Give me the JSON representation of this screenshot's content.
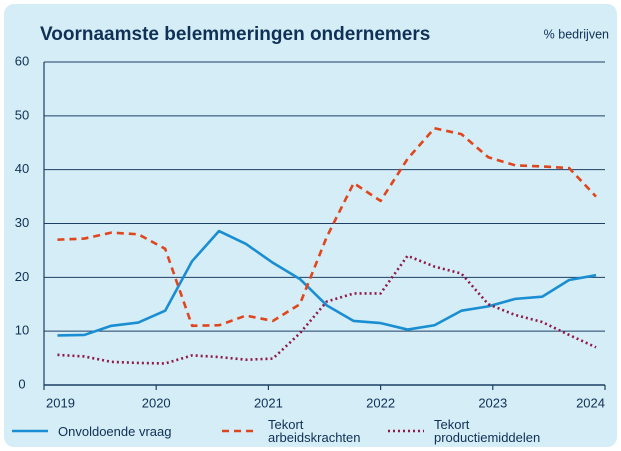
{
  "chart_data": {
    "type": "line",
    "title": "Voornaamste belemmeringen ondernemers",
    "y_label": "% bedrijven",
    "x": [
      2019.12,
      2019.36,
      2019.6,
      2019.84,
      2020.08,
      2020.32,
      2020.56,
      2020.8,
      2021.04,
      2021.28,
      2021.52,
      2021.76,
      2022.0,
      2022.24,
      2022.48,
      2022.72,
      2022.96,
      2023.2,
      2023.44,
      2023.68,
      2023.92
    ],
    "xlim": [
      2019,
      2024
    ],
    "xticks": [
      2019,
      2020,
      2021,
      2022,
      2023,
      2024
    ],
    "ylim": [
      0,
      60
    ],
    "yticks": [
      0,
      10,
      20,
      30,
      40,
      50,
      60
    ],
    "grid": true,
    "series": [
      {
        "name": "Onvoldoende vraag",
        "color": "#1a8ed2",
        "style": "solid",
        "values": [
          9.2,
          9.3,
          11,
          11.6,
          13.8,
          23,
          28.6,
          26.2,
          22.7,
          19.7,
          14.8,
          11.9,
          11.5,
          10.3,
          11.1,
          13.8,
          14.6,
          16,
          16.4,
          19.5,
          20.4
        ]
      },
      {
        "name": "Tekort arbeidskrachten",
        "color": "#e0461e",
        "style": "dashed",
        "values": [
          27,
          27.2,
          28.3,
          28,
          25.3,
          11,
          11.1,
          12.9,
          11.9,
          15,
          27.5,
          37.5,
          34.2,
          42,
          47.7,
          46.6,
          42.3,
          40.8,
          40.6,
          40.3,
          35
        ]
      },
      {
        "name": "Tekort productiemiddelen",
        "color": "#8e1a4a",
        "style": "dotted",
        "values": [
          5.6,
          5.3,
          4.3,
          4.1,
          4.0,
          5.5,
          5.2,
          4.7,
          4.9,
          9.6,
          15.5,
          17,
          17,
          24,
          22,
          20.7,
          15,
          13,
          11.7,
          9.3,
          7
        ]
      }
    ]
  }
}
